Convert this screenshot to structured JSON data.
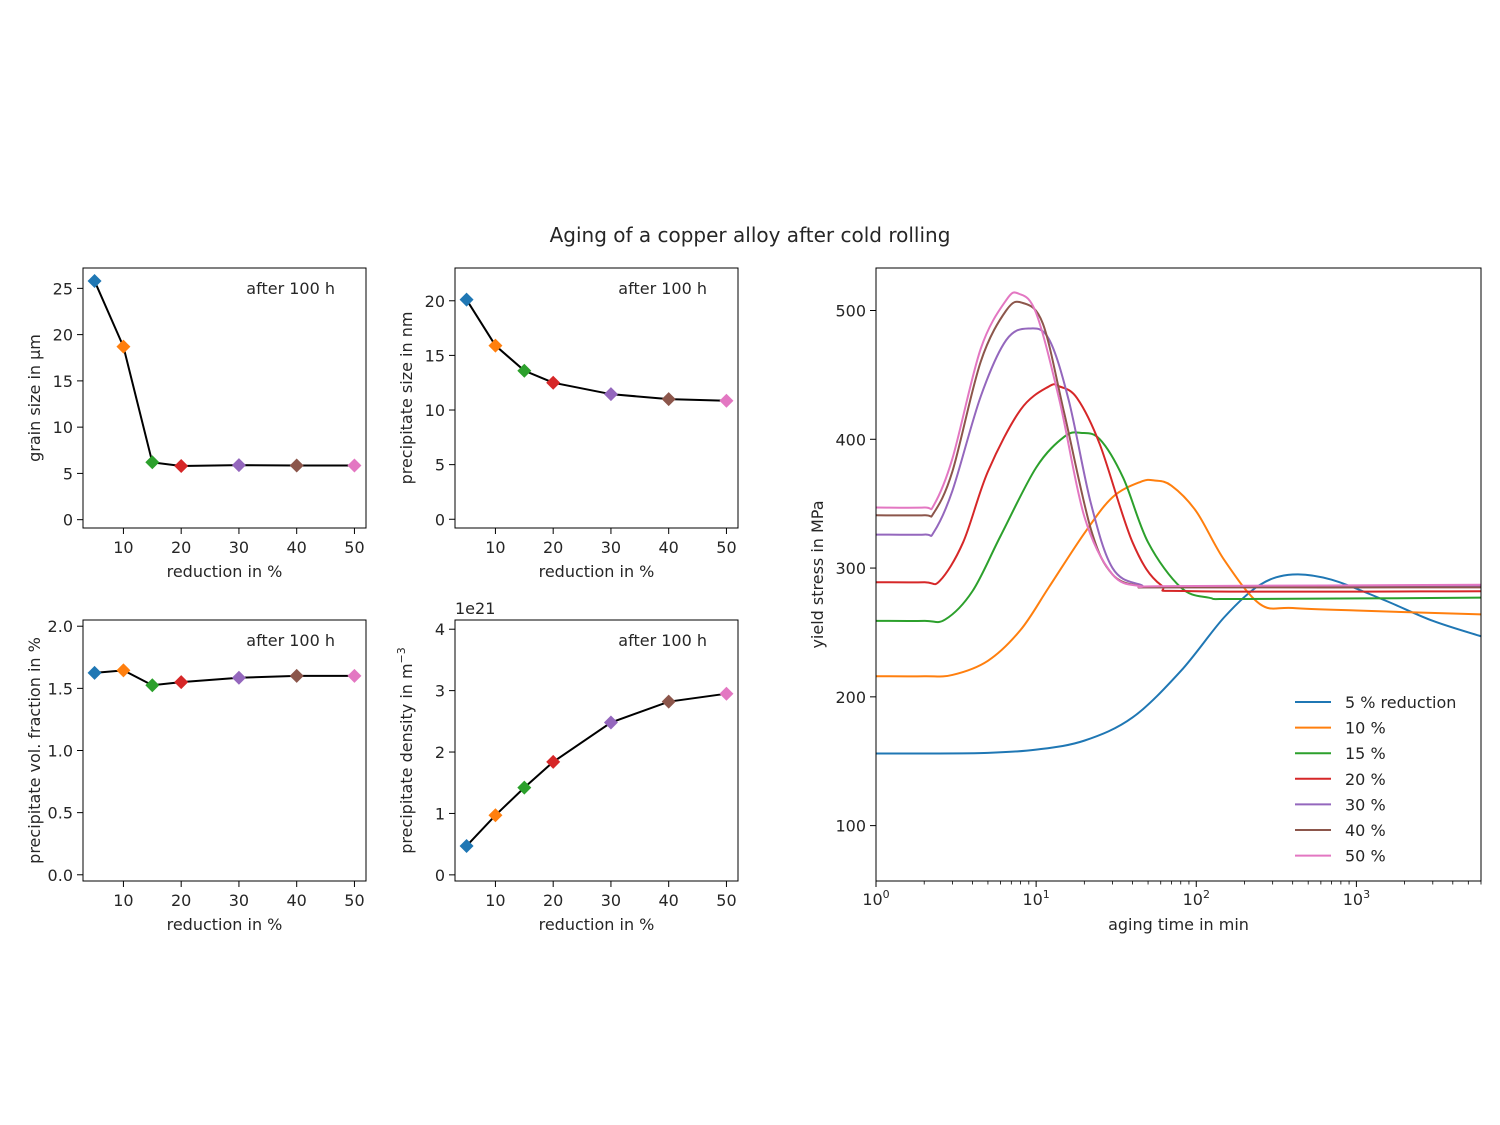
{
  "figure": {
    "title": "Aging of a copper alloy after cold rolling"
  },
  "colors": [
    "#1f77b4",
    "#ff7f0e",
    "#2ca02c",
    "#d62728",
    "#9467bd",
    "#8c564b",
    "#e377c2"
  ],
  "chart_data": [
    {
      "id": "grain",
      "type": "line",
      "marker": "diamond",
      "x": [
        5,
        10,
        15,
        20,
        30,
        40,
        50
      ],
      "y": [
        25.8,
        18.7,
        6.2,
        5.8,
        5.9,
        5.85,
        5.85
      ],
      "xlabel": "reduction in %",
      "ylabel": "grain size in µm",
      "annotation": "after 100 h",
      "xlim": [
        3,
        52
      ],
      "ylim": [
        -0.9,
        27.2
      ],
      "xticks": [
        10,
        20,
        30,
        40,
        50
      ],
      "xticklabels": [
        "10",
        "20",
        "30",
        "40",
        "50"
      ],
      "yticks": [
        0,
        5,
        10,
        15,
        20,
        25
      ],
      "yticklabels": [
        "0",
        "5",
        "10",
        "15",
        "20",
        "25"
      ],
      "offset_text": ""
    },
    {
      "id": "psize",
      "type": "line",
      "marker": "diamond",
      "x": [
        5,
        10,
        15,
        20,
        30,
        40,
        50
      ],
      "y": [
        20.1,
        15.9,
        13.6,
        12.5,
        11.45,
        11.0,
        10.85
      ],
      "xlabel": "reduction in %",
      "ylabel": "precipitate size in nm",
      "annotation": "after 100 h",
      "xlim": [
        3,
        52
      ],
      "ylim": [
        -0.8,
        23.0
      ],
      "xticks": [
        10,
        20,
        30,
        40,
        50
      ],
      "xticklabels": [
        "10",
        "20",
        "30",
        "40",
        "50"
      ],
      "yticks": [
        0,
        5,
        10,
        15,
        20
      ],
      "yticklabels": [
        "0",
        "5",
        "10",
        "15",
        "20"
      ],
      "offset_text": ""
    },
    {
      "id": "pvol",
      "type": "line",
      "marker": "diamond",
      "x": [
        5,
        10,
        15,
        20,
        30,
        40,
        50
      ],
      "y": [
        1.625,
        1.645,
        1.525,
        1.55,
        1.585,
        1.6,
        1.6
      ],
      "xlabel": "reduction in %",
      "ylabel": "precipitate vol. fraction in %",
      "annotation": "after 100 h",
      "xlim": [
        3,
        52
      ],
      "ylim": [
        -0.05,
        2.05
      ],
      "xticks": [
        10,
        20,
        30,
        40,
        50
      ],
      "xticklabels": [
        "10",
        "20",
        "30",
        "40",
        "50"
      ],
      "yticks": [
        0,
        0.5,
        1.0,
        1.5,
        2.0
      ],
      "yticklabels": [
        "0.0",
        "0.5",
        "1.0",
        "1.5",
        "2.0"
      ],
      "offset_text": ""
    },
    {
      "id": "pdens",
      "type": "line",
      "marker": "diamond",
      "x": [
        5,
        10,
        15,
        20,
        30,
        40,
        50
      ],
      "y": [
        0.47,
        0.97,
        1.42,
        1.84,
        2.48,
        2.82,
        2.95
      ],
      "xlabel": "reduction in %",
      "ylabel": "precipitate density in m",
      "ylabel_sup": "−3",
      "annotation": "after 100 h",
      "xlim": [
        3,
        52
      ],
      "ylim": [
        -0.1,
        4.15
      ],
      "xticks": [
        10,
        20,
        30,
        40,
        50
      ],
      "xticklabels": [
        "10",
        "20",
        "30",
        "40",
        "50"
      ],
      "yticks": [
        0,
        1,
        2,
        3,
        4
      ],
      "yticklabels": [
        "0",
        "1",
        "2",
        "3",
        "4"
      ],
      "offset_text": "1e21"
    },
    {
      "id": "yield",
      "type": "line",
      "xscale": "log",
      "xlabel": "aging time in min",
      "ylabel": "yield stress in MPa",
      "xlim": [
        1,
        6000
      ],
      "ylim": [
        57,
        533
      ],
      "xticks": [
        1,
        10,
        100,
        1000
      ],
      "xtick_base": "10",
      "xtick_exponents": [
        "0",
        "1",
        "2",
        "3"
      ],
      "yticks": [
        100,
        200,
        300,
        400,
        500
      ],
      "yticklabels": [
        "100",
        "200",
        "300",
        "400",
        "500"
      ],
      "legend": "lower-right",
      "series": [
        {
          "name": "5 % reduction",
          "x": [
            1,
            2,
            5,
            10,
            20,
            40,
            80,
            150,
            250,
            400,
            700,
            1500,
            3000,
            6000
          ],
          "y": [
            156,
            156,
            156.5,
            159,
            166,
            184,
            220,
            262,
            287,
            295,
            291,
            275,
            259,
            247
          ]
        },
        {
          "name": "10 %",
          "x": [
            1,
            2,
            3,
            5,
            8,
            12,
            20,
            30,
            45,
            55,
            70,
            100,
            150,
            250,
            400,
            1000,
            6000
          ],
          "y": [
            216,
            216,
            217,
            228,
            252,
            285,
            327,
            355,
            367,
            368,
            364,
            344,
            306,
            272,
            269,
            267,
            264
          ]
        },
        {
          "name": "15 %",
          "x": [
            1,
            2,
            2.7,
            4,
            6,
            10,
            15,
            19,
            25,
            35,
            50,
            80,
            120,
            200,
            6000
          ],
          "y": [
            259,
            259,
            260,
            282,
            325,
            378,
            402,
            405,
            400,
            370,
            320,
            285,
            277,
            276,
            277
          ]
        },
        {
          "name": "20 %",
          "x": [
            1,
            2,
            2.5,
            3.5,
            5,
            8,
            12,
            14,
            18,
            25,
            40,
            60,
            100,
            6000
          ],
          "y": [
            289,
            289,
            290,
            320,
            375,
            423,
            441,
            441,
            432,
            396,
            320,
            287,
            282,
            282
          ]
        },
        {
          "name": "30 %",
          "x": [
            1,
            2,
            2.3,
            3,
            4.5,
            6.5,
            9,
            12,
            16,
            22,
            30,
            45,
            70,
            6000
          ],
          "y": [
            326,
            326,
            328,
            360,
            433,
            477,
            486,
            478,
            430,
            350,
            300,
            287,
            285,
            286
          ]
        },
        {
          "name": "40 %",
          "x": [
            1,
            2,
            2.3,
            3,
            4.5,
            6.5,
            8.2,
            11,
            15,
            22,
            30,
            45,
            70,
            6000
          ],
          "y": [
            341,
            341,
            343,
            375,
            460,
            500,
            506,
            490,
            420,
            330,
            295,
            286,
            285,
            285
          ]
        },
        {
          "name": "50 %",
          "x": [
            1,
            2,
            2.3,
            3,
            4.5,
            6.5,
            7.8,
            10,
            14,
            20,
            30,
            45,
            70,
            6000
          ],
          "y": [
            347,
            347,
            349,
            385,
            470,
            508,
            513,
            498,
            430,
            340,
            295,
            286,
            286,
            287
          ]
        }
      ]
    }
  ]
}
